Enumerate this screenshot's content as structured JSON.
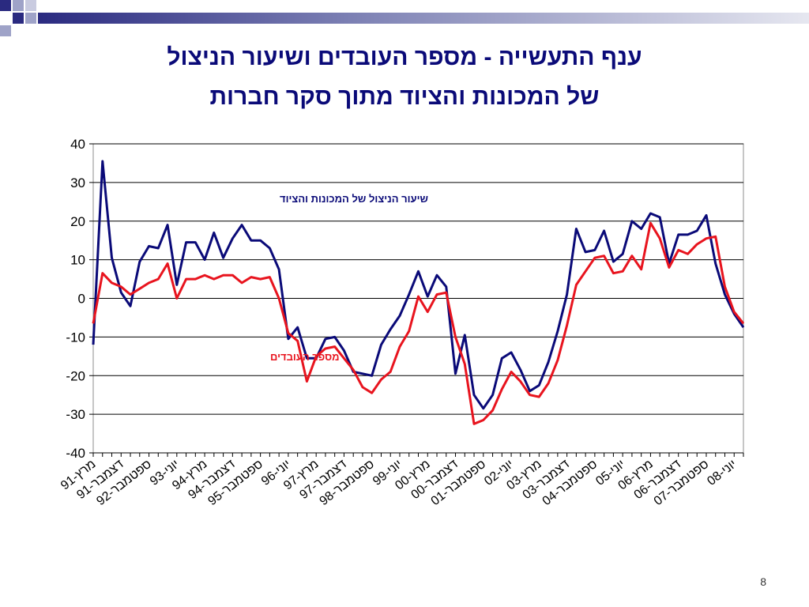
{
  "slide": {
    "title_line1": "ענף התעשייה - מספר העובדים ושיעור הניצול",
    "title_line2": "של המכונות והציוד מתוך סקר חברות",
    "number": "8"
  },
  "colors": {
    "title": "#0a0a78",
    "series_equipment": "#0a0a78",
    "series_workers": "#e8141e",
    "deco_dark": "#2a2a80",
    "deco_light": "#9fa3c8"
  },
  "chart_data": {
    "type": "line",
    "ylim": [
      -40,
      40
    ],
    "yticks": [
      40,
      30,
      20,
      10,
      0,
      -10,
      -20,
      -30,
      -40
    ],
    "grid": true,
    "xlabel": "",
    "ylabel": "",
    "x_labels": [
      "מרץ-91",
      "דצמבר-91",
      "ספטמבר-92",
      "יוני-93",
      "מרץ-94",
      "דצמבר-94",
      "ספטמבר-95",
      "יוני-96",
      "מרץ-97",
      "דצמבר-97",
      "ספטמבר-98",
      "יוני-99",
      "מרץ-00",
      "דצמבר-00",
      "ספטמבר-01",
      "יוני-02",
      "מרץ-03",
      "דצמבר-03",
      "ספטמבר-04",
      "יוני-05",
      "מרץ-06",
      "דצמבר-06",
      "ספטמבר-07",
      "יוני-08"
    ],
    "series": [
      {
        "name": "שיעור הניצול של המכונות והציוד",
        "color": "#0a0a78",
        "values": [
          -12,
          35.5,
          10.5,
          1.5,
          -2,
          9.5,
          13.5,
          13,
          19,
          3.5,
          14.5,
          14.5,
          10,
          17,
          10.5,
          15.5,
          19,
          15,
          15,
          13,
          7.5,
          -10.5,
          -7.5,
          -15.5,
          -15.5,
          -10.5,
          -10,
          -13.5,
          -19,
          -19.5,
          -20,
          -12,
          -8,
          -4.5,
          1,
          7,
          0.5,
          6,
          3,
          -19.5,
          -9.5,
          -25,
          -28.5,
          -25,
          -15.5,
          -14,
          -18.5,
          -24,
          -22.5,
          -16.5,
          -8.5,
          1,
          18,
          12,
          12.5,
          17.5,
          9.5,
          11.5,
          20,
          18,
          22,
          21,
          9,
          16.5,
          16.5,
          17.5,
          21.5,
          9,
          1,
          -4,
          -7.5
        ]
      },
      {
        "name": "מספר העובדים",
        "color": "#e8141e",
        "values": [
          -6.5,
          6.5,
          4,
          3,
          1,
          2.5,
          4,
          5,
          9,
          0,
          5,
          5,
          6,
          5,
          6,
          6,
          4,
          5.5,
          5,
          5.5,
          0,
          -9,
          -11,
          -21.5,
          -15,
          -13,
          -12.5,
          -15.5,
          -18.5,
          -23,
          -24.5,
          -21,
          -19,
          -12.5,
          -8.5,
          0.5,
          -3.5,
          1,
          1.5,
          -10,
          -17,
          -32.5,
          -31.5,
          -29,
          -23.5,
          -19,
          -21.5,
          -25,
          -25.5,
          -22,
          -16,
          -7,
          3.5,
          7,
          10.5,
          11,
          6.5,
          7,
          11,
          7.5,
          19.5,
          15.5,
          8,
          12.5,
          11.5,
          14,
          15.5,
          16,
          3,
          -3.5,
          -6.5
        ]
      }
    ],
    "annotations": [
      {
        "text": "שיעור הניצול של המכונות והציוד",
        "series": 0
      },
      {
        "text": "מספר העובדים",
        "series": 1
      }
    ]
  }
}
